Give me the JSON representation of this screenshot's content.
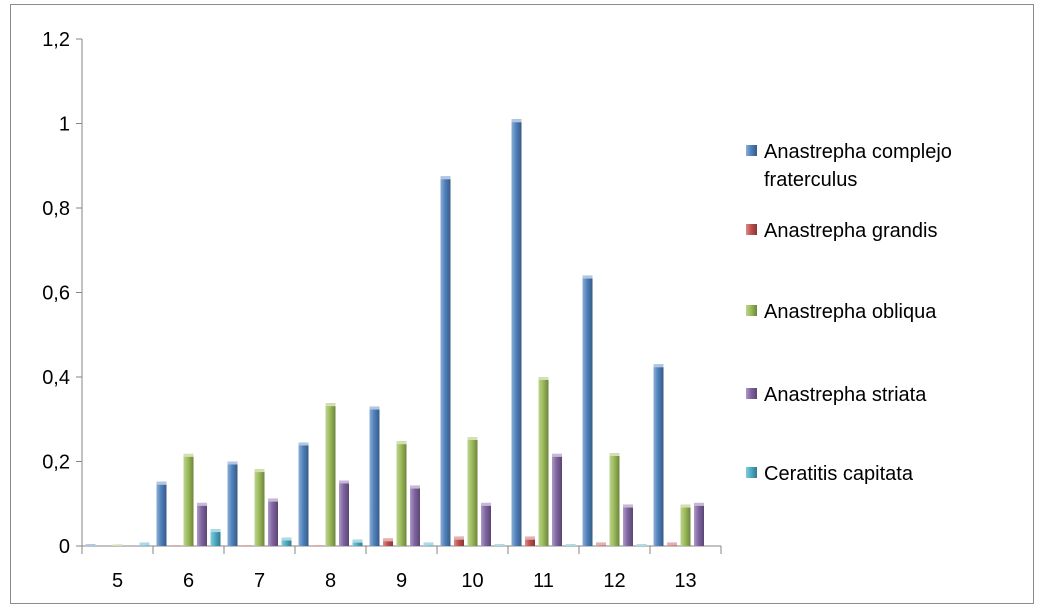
{
  "chart_data": {
    "type": "bar",
    "categories": [
      "5",
      "6",
      "7",
      "8",
      "9",
      "10",
      "11",
      "12",
      "13"
    ],
    "series": [
      {
        "name": "Anastrepha complejo fraterculus",
        "color": "#4f81bd",
        "values": [
          0.004,
          0.152,
          0.2,
          0.245,
          0.33,
          0.875,
          1.01,
          0.64,
          0.43
        ]
      },
      {
        "name": "Anastrepha grandis",
        "color": "#c0504d",
        "values": [
          0.0,
          0.002,
          0.002,
          0.002,
          0.018,
          0.022,
          0.022,
          0.008,
          0.008
        ]
      },
      {
        "name": "Anastrepha obliqua",
        "color": "#9bbb59",
        "values": [
          0.003,
          0.218,
          0.182,
          0.338,
          0.248,
          0.258,
          0.4,
          0.22,
          0.098
        ]
      },
      {
        "name": "Anastrepha striata",
        "color": "#8064a2",
        "values": [
          0.0,
          0.102,
          0.112,
          0.155,
          0.143,
          0.102,
          0.218,
          0.098,
          0.102
        ]
      },
      {
        "name": "Ceratitis capitata",
        "color": "#4bacc6",
        "values": [
          0.008,
          0.04,
          0.02,
          0.015,
          0.008,
          0.004,
          0.004,
          0.004,
          0.0
        ]
      }
    ],
    "ylim": [
      0,
      1.2
    ],
    "yticks": [
      "0",
      "0,2",
      "0,4",
      "0,6",
      "0,8",
      "1",
      "1,2"
    ],
    "legend_position": "right",
    "grid": false,
    "title": "",
    "xlabel": "",
    "ylabel": ""
  }
}
